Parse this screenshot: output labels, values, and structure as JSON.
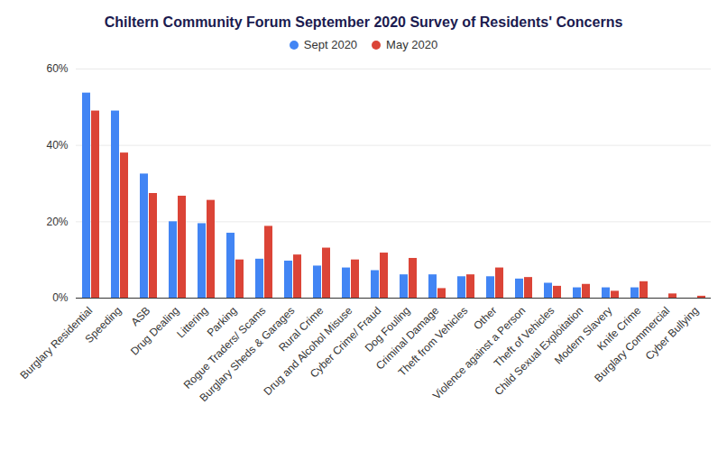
{
  "chart_data": {
    "type": "bar",
    "title": "Chiltern Community Forum September 2020 Survey of Residents' Concerns",
    "categories": [
      "Burglary Residential",
      "Speeding",
      "ASB",
      "Drug Dealing",
      "Littering",
      "Parking",
      "Rogue Traders/ Scams",
      "Burglary Sheds & Garages",
      "Rural Crime",
      "Drug and Alcohol Misuse",
      "Cyber Crime/ Fraud",
      "Dog Fouling",
      "Criminal Damage",
      "Theft from Vehicles",
      "Other",
      "Violence against a Person",
      "Theft of Vehicles",
      "Child Sexual Exploitation",
      "Modern Slavery",
      "Knife Crime",
      "Burglary Commercial",
      "Cyber Bullying"
    ],
    "series": [
      {
        "name": "Sept 2020",
        "color": "#4285f4",
        "values": [
          53.7,
          49,
          32.5,
          20,
          19.5,
          17,
          10.2,
          9.7,
          8.4,
          7.9,
          7.2,
          6.1,
          6.1,
          5.6,
          5.6,
          5,
          3.9,
          2.7,
          2.7,
          2.7,
          0,
          0
        ]
      },
      {
        "name": "May 2020",
        "color": "#db4437",
        "values": [
          49,
          38,
          27.4,
          26.7,
          25.6,
          10,
          18.8,
          11.3,
          13.1,
          10,
          11.8,
          10.4,
          2.5,
          6.1,
          7.9,
          5.4,
          3.1,
          3.6,
          1.8,
          4.3,
          1.1,
          0.5
        ]
      }
    ],
    "ylim": [
      0,
      60
    ],
    "yticks": [
      {
        "value": 0,
        "label": "0%"
      },
      {
        "value": 20,
        "label": "20%"
      },
      {
        "value": 40,
        "label": "40%"
      },
      {
        "value": 60,
        "label": "60%"
      }
    ],
    "grid": true,
    "legend": "top"
  }
}
